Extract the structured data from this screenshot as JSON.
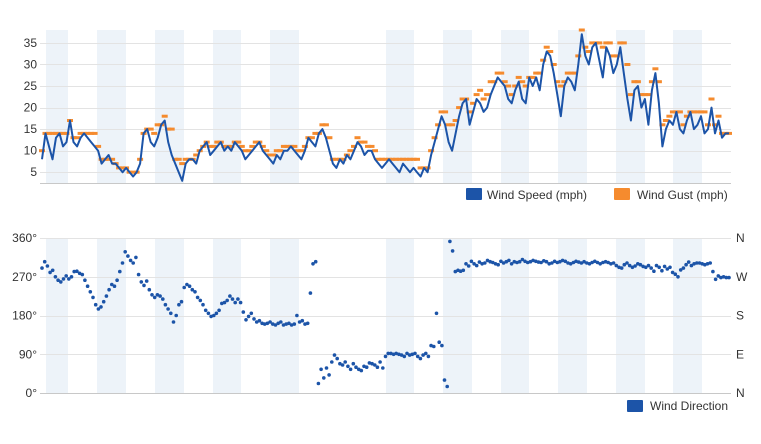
{
  "colors": {
    "speed": "#1c54a8",
    "gust": "#f58b2e",
    "direction": "#1c54a8",
    "band": "#edf3f9",
    "grid": "#e3e3e3"
  },
  "chart_data": [
    {
      "type": "line",
      "title": "",
      "xlabel": "",
      "ylabel": "",
      "ylim": [
        2.5,
        38
      ],
      "yticks": [
        "5",
        "10",
        "15",
        "20",
        "25",
        "30",
        "35"
      ],
      "grid": "horizontal",
      "legend": "bottom-right",
      "series": [
        {
          "name": "Wind Speed (mph)",
          "color": "#1c54a8",
          "values": [
            8,
            14,
            11,
            8,
            13,
            14,
            11,
            12,
            17,
            12,
            11,
            13,
            14,
            13,
            12,
            11,
            10,
            7,
            8,
            9,
            7,
            7,
            6,
            5,
            6,
            5,
            4,
            5,
            7,
            14,
            15,
            12,
            11,
            13,
            16,
            17,
            12,
            9,
            7,
            5,
            3,
            7,
            8,
            8,
            7,
            10,
            11,
            12,
            9,
            10,
            11,
            12,
            10,
            11,
            10,
            12,
            11,
            10,
            8,
            9,
            10,
            11,
            12,
            10,
            9,
            8,
            7,
            9,
            8,
            10,
            10,
            11,
            10,
            9,
            8,
            10,
            13,
            12,
            11,
            14,
            15,
            13,
            10,
            7,
            6,
            8,
            7,
            9,
            8,
            10,
            12,
            11,
            9,
            10,
            10,
            8,
            7,
            6,
            7,
            8,
            7,
            6,
            5,
            7,
            6,
            5,
            6,
            5,
            4,
            6,
            5,
            9,
            12,
            15,
            18,
            16,
            12,
            10,
            14,
            18,
            21,
            22,
            16,
            19,
            22,
            21,
            19,
            20,
            23,
            25,
            27,
            26,
            25,
            22,
            21,
            24,
            26,
            22,
            21,
            27,
            25,
            27,
            24,
            30,
            33,
            32,
            28,
            23,
            18,
            25,
            27,
            26,
            24,
            30,
            37,
            32,
            30,
            34,
            35,
            31,
            27,
            34,
            32,
            28,
            30,
            34,
            28,
            22,
            17,
            24,
            25,
            20,
            22,
            16,
            24,
            28,
            21,
            11,
            15,
            17,
            16,
            19,
            15,
            14,
            17,
            19,
            15,
            16,
            18,
            14,
            15,
            20,
            14,
            17,
            13,
            14,
            14
          ]
        },
        {
          "name": "Wind Gust (mph)",
          "color": "#f58b2e",
          "values": [
            10,
            14,
            14,
            14,
            14,
            14,
            14,
            14,
            17,
            13,
            13,
            14,
            14,
            14,
            14,
            14,
            11,
            8,
            8,
            8,
            8,
            7,
            6,
            6,
            6,
            5,
            5,
            5,
            8,
            14,
            15,
            15,
            14,
            16,
            16,
            18,
            15,
            15,
            8,
            8,
            7,
            8,
            8,
            8,
            9,
            10,
            11,
            12,
            11,
            11,
            12,
            12,
            11,
            11,
            11,
            12,
            12,
            11,
            10,
            10,
            11,
            12,
            12,
            11,
            10,
            9,
            9,
            10,
            10,
            11,
            11,
            11,
            11,
            10,
            10,
            11,
            13,
            13,
            14,
            14,
            16,
            16,
            13,
            8,
            8,
            8,
            8,
            9,
            10,
            11,
            13,
            12,
            12,
            11,
            11,
            10,
            8,
            8,
            8,
            8,
            8,
            8,
            8,
            8,
            8,
            8,
            8,
            8,
            6,
            6,
            6,
            10,
            13,
            16,
            19,
            19,
            16,
            16,
            17,
            20,
            22,
            22,
            19,
            21,
            23,
            24,
            22,
            23,
            26,
            26,
            28,
            28,
            26,
            25,
            23,
            25,
            27,
            26,
            25,
            27,
            27,
            28,
            28,
            31,
            34,
            33,
            30,
            26,
            25,
            26,
            28,
            28,
            28,
            32,
            38,
            34,
            33,
            35,
            35,
            35,
            34,
            35,
            35,
            32,
            32,
            35,
            35,
            30,
            23,
            26,
            26,
            23,
            23,
            23,
            26,
            29,
            26,
            16,
            17,
            18,
            19,
            19,
            19,
            16,
            18,
            19,
            19,
            19,
            19,
            19,
            16,
            22,
            16,
            18,
            14,
            14,
            14
          ]
        }
      ]
    },
    {
      "type": "scatter",
      "title": "",
      "xlabel": "",
      "ylabel": "",
      "ylim": [
        0,
        360
      ],
      "yticks": [
        "0°",
        "90°",
        "180°",
        "270°",
        "360°"
      ],
      "yticks_right": [
        "N",
        "E",
        "S",
        "W",
        "N"
      ],
      "grid": "horizontal",
      "legend": "bottom-right",
      "series": [
        {
          "name": "Wind Direction",
          "color": "#1c54a8",
          "values": [
            290,
            305,
            295,
            280,
            285,
            270,
            262,
            258,
            265,
            272,
            265,
            270,
            282,
            283,
            278,
            275,
            262,
            248,
            235,
            222,
            205,
            195,
            200,
            212,
            225,
            240,
            252,
            248,
            262,
            282,
            302,
            328,
            318,
            308,
            302,
            315,
            275,
            258,
            250,
            260,
            240,
            228,
            222,
            228,
            225,
            218,
            205,
            195,
            185,
            165,
            180,
            205,
            212,
            245,
            252,
            248,
            240,
            235,
            222,
            215,
            205,
            192,
            185,
            178,
            180,
            185,
            192,
            208,
            210,
            215,
            225,
            218,
            210,
            218,
            210,
            188,
            170,
            178,
            185,
            172,
            165,
            168,
            162,
            160,
            162,
            165,
            160,
            158,
            162,
            165,
            158,
            160,
            162,
            158,
            160,
            180,
            165,
            168,
            160,
            162,
            232,
            300,
            305,
            22,
            55,
            35,
            58,
            42,
            72,
            88,
            80,
            68,
            65,
            72,
            62,
            55,
            68,
            60,
            55,
            52,
            62,
            60,
            70,
            68,
            65,
            60,
            72,
            58,
            85,
            92,
            92,
            90,
            92,
            90,
            88,
            85,
            92,
            88,
            90,
            92,
            85,
            80,
            88,
            92,
            85,
            110,
            108,
            185,
            118,
            110,
            30,
            15,
            352,
            330,
            282,
            285,
            283,
            285,
            300,
            295,
            306,
            300,
            296,
            304,
            300,
            302,
            308,
            305,
            303,
            300,
            298,
            306,
            302,
            305,
            308,
            300,
            305,
            303,
            305,
            310,
            306,
            303,
            305,
            308,
            306,
            304,
            303,
            307,
            305,
            300,
            302,
            306,
            303,
            305,
            308,
            306,
            302,
            300,
            303,
            306,
            304,
            302,
            305,
            302,
            300,
            303,
            306,
            303,
            300,
            303,
            305,
            303,
            300,
            302,
            296,
            292,
            290,
            298,
            302,
            296,
            292,
            295,
            300,
            298,
            294,
            292,
            296,
            290,
            283,
            296,
            292,
            284,
            294,
            288,
            292,
            280,
            276,
            270,
            286,
            290,
            298,
            304,
            296,
            300,
            302,
            302,
            300,
            298,
            300,
            302,
            282,
            264,
            272,
            268,
            270,
            268,
            268
          ]
        }
      ]
    }
  ]
}
